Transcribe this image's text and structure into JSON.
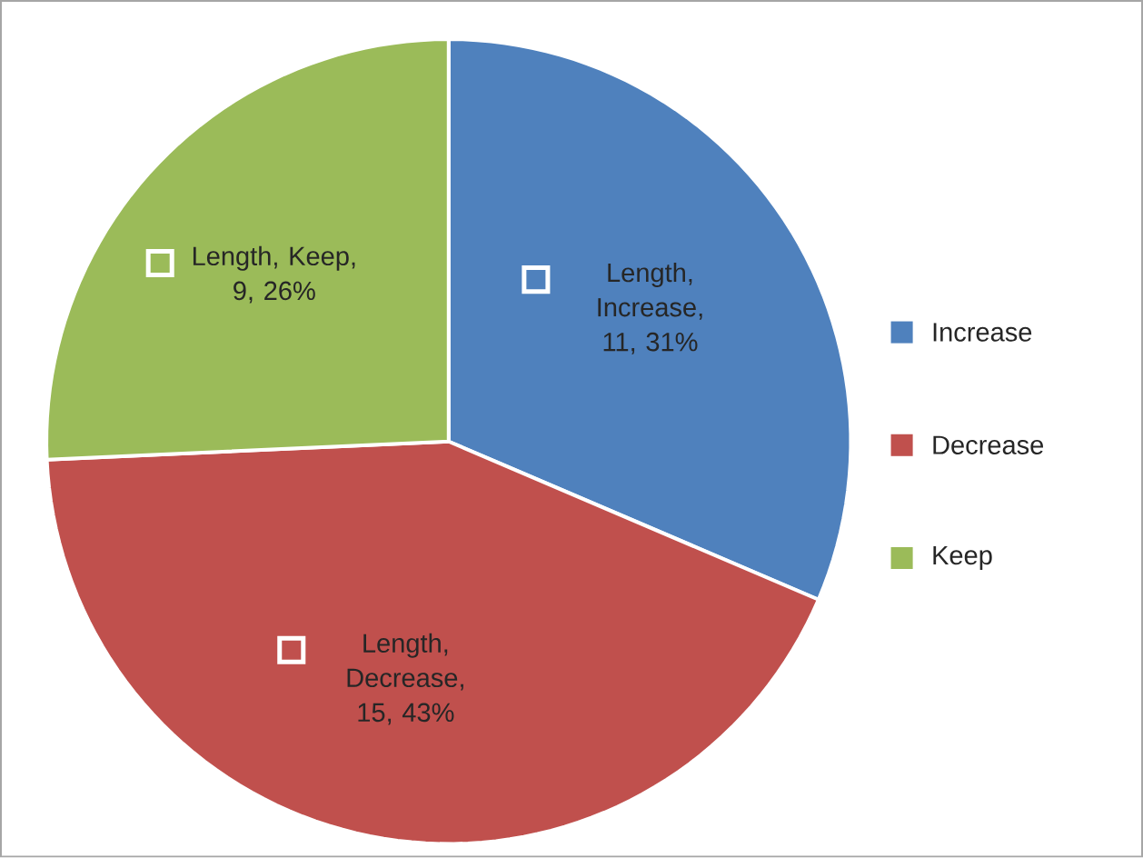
{
  "chart_data": {
    "type": "pie",
    "categories": [
      "Increase",
      "Decrease",
      "Keep"
    ],
    "values": [
      11,
      15,
      9
    ],
    "colors": [
      "#4f81bd",
      "#c0504d",
      "#9bbb59"
    ],
    "value_labels": [
      "Length, Increase, 11, 31%",
      "Length, Decrease, 15, 43%",
      "Length, Keep, 9, 26%"
    ],
    "legend": "right"
  }
}
